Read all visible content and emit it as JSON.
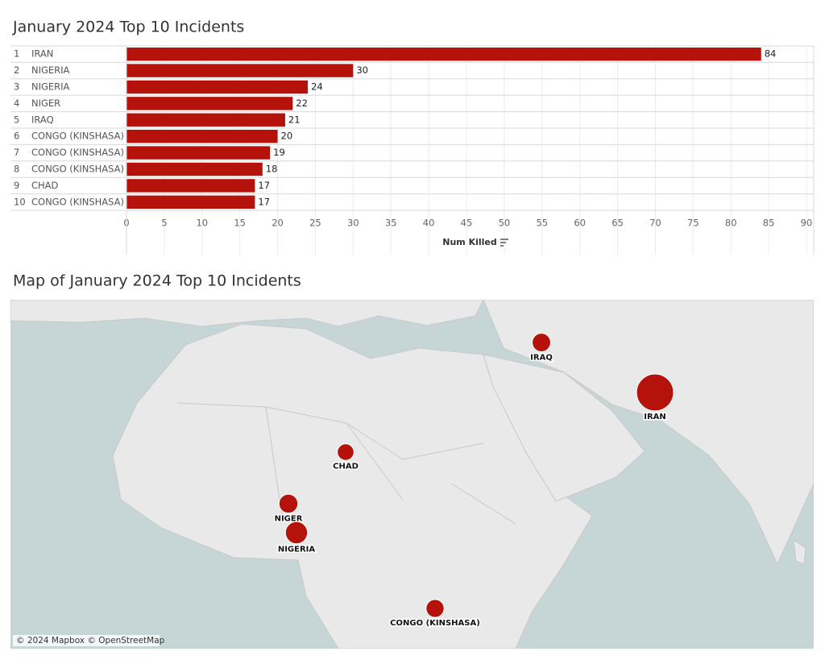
{
  "chart_data": [
    {
      "type": "bar",
      "title": "January 2024 Top 10 Incidents",
      "ranks": [
        1,
        2,
        3,
        4,
        5,
        6,
        7,
        8,
        9,
        10
      ],
      "categories": [
        "IRAN",
        "NIGERIA",
        "NIGERIA",
        "NIGER",
        "IRAQ",
        "CONGO (KINSHASA)",
        "CONGO (KINSHASA)",
        "CONGO (KINSHASA)",
        "CHAD",
        "CONGO (KINSHASA)"
      ],
      "values": [
        84,
        30,
        24,
        22,
        21,
        20,
        19,
        18,
        17,
        17
      ],
      "color": "#b5120b",
      "x_label": "Num Killed",
      "xlim": [
        0,
        90
      ],
      "xticks": [
        0,
        5,
        10,
        15,
        20,
        25,
        30,
        35,
        40,
        45,
        50,
        55,
        60,
        65,
        70,
        75,
        80,
        85,
        90
      ],
      "grid": true
    },
    {
      "type": "map",
      "title": "Map of January 2024 Top 10 Incidents",
      "labels": [
        "IRAQ",
        "IRAN",
        "CHAD",
        "NIGER",
        "NIGERIA",
        "CONGO (KINSHASA)"
      ],
      "attribution": "© 2024 Mapbox © OpenStreetMap"
    }
  ]
}
